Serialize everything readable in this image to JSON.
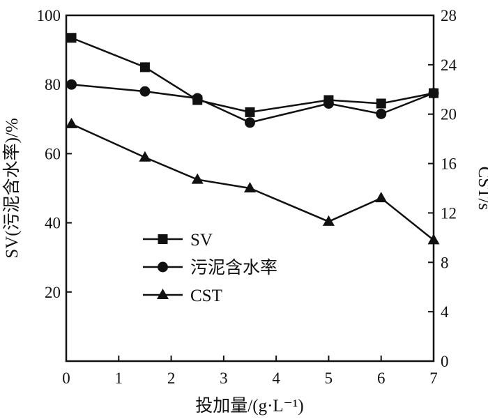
{
  "chart_data": {
    "type": "line",
    "xlabel": "投加量/(g·L⁻¹)",
    "ylabel_left": "SV(污泥含水率)/%",
    "ylabel_right": "CST/s",
    "xlim": [
      0,
      7
    ],
    "ylim_left": [
      0,
      100
    ],
    "ylim_right": [
      0,
      28
    ],
    "x_ticks": [
      "0",
      "1",
      "2",
      "3",
      "4",
      "5",
      "6",
      "7"
    ],
    "y_left_ticks": [
      "20",
      "40",
      "60",
      "80",
      "100"
    ],
    "y_right_ticks": [
      "0",
      "4",
      "8",
      "12",
      "16",
      "20",
      "24",
      "28"
    ],
    "grid": false,
    "legend_position": "center-left",
    "series": [
      {
        "name": "SV",
        "axis": "left",
        "marker": "square",
        "x": [
          0.1,
          1.5,
          2.5,
          3.5,
          5,
          6,
          7
        ],
        "y": [
          93.5,
          85,
          75.5,
          72,
          75.5,
          74.5,
          77.5
        ]
      },
      {
        "name": "污泥含水率",
        "axis": "left",
        "marker": "circle",
        "x": [
          0.1,
          1.5,
          2.5,
          3.5,
          5,
          6,
          7
        ],
        "y": [
          80,
          78,
          76,
          69,
          74.5,
          71.5,
          77.5
        ]
      },
      {
        "name": "CST",
        "axis": "right",
        "marker": "triangle",
        "x": [
          0.1,
          1.5,
          2.5,
          3.5,
          5,
          6,
          7
        ],
        "y": [
          19.2,
          16.5,
          14.7,
          14,
          11.3,
          13.2,
          9.8
        ]
      }
    ]
  }
}
